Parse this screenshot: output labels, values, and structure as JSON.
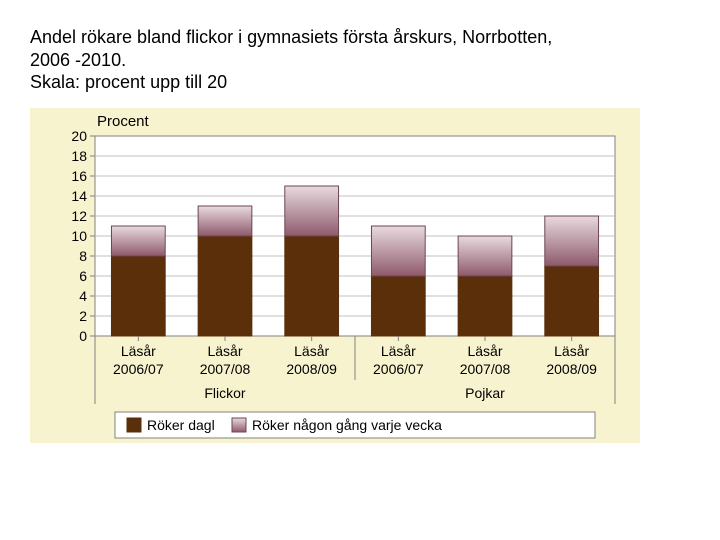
{
  "caption_line1": "Andel rökare bland flickor i gymnasiets första årskurs, Norrbotten,",
  "caption_line2": "2006 -2010.",
  "caption_line3": "Skala: procent upp till 20",
  "chart": {
    "type": "stacked-bar",
    "background_color": "#f8f3cf",
    "plot_background": "#ffffff",
    "grid_color": "#c0c0c0",
    "axis_color": "#808080",
    "ylabel": "Procent",
    "ylim": [
      0,
      20
    ],
    "ytick_step": 2,
    "bar_width": 0.62,
    "categories": [
      {
        "line1": "Läsår",
        "line2": "2006/07"
      },
      {
        "line1": "Läsår",
        "line2": "2007/08"
      },
      {
        "line1": "Läsår",
        "line2": "2008/09"
      },
      {
        "line1": "Läsår",
        "line2": "2006/07"
      },
      {
        "line1": "Läsår",
        "line2": "2007/08"
      },
      {
        "line1": "Läsår",
        "line2": "2008/09"
      }
    ],
    "groups": [
      "Flickor",
      "Pojkar"
    ],
    "series": [
      {
        "name": "Röker dagl",
        "fill_top": "#5b2f0a",
        "fill_bottom": "#5b2f0a",
        "stroke": "#5b2f0a",
        "values": [
          8,
          10,
          10,
          6,
          6,
          7
        ]
      },
      {
        "name": "Röker någon gång varje vecka",
        "fill_top": "#e8dadf",
        "fill_bottom": "#8f5a6b",
        "stroke": "#6e4651",
        "values": [
          3,
          3,
          5,
          5,
          4,
          5
        ]
      }
    ],
    "legend": {
      "bg": "#ffffff",
      "border": "#808080"
    }
  }
}
